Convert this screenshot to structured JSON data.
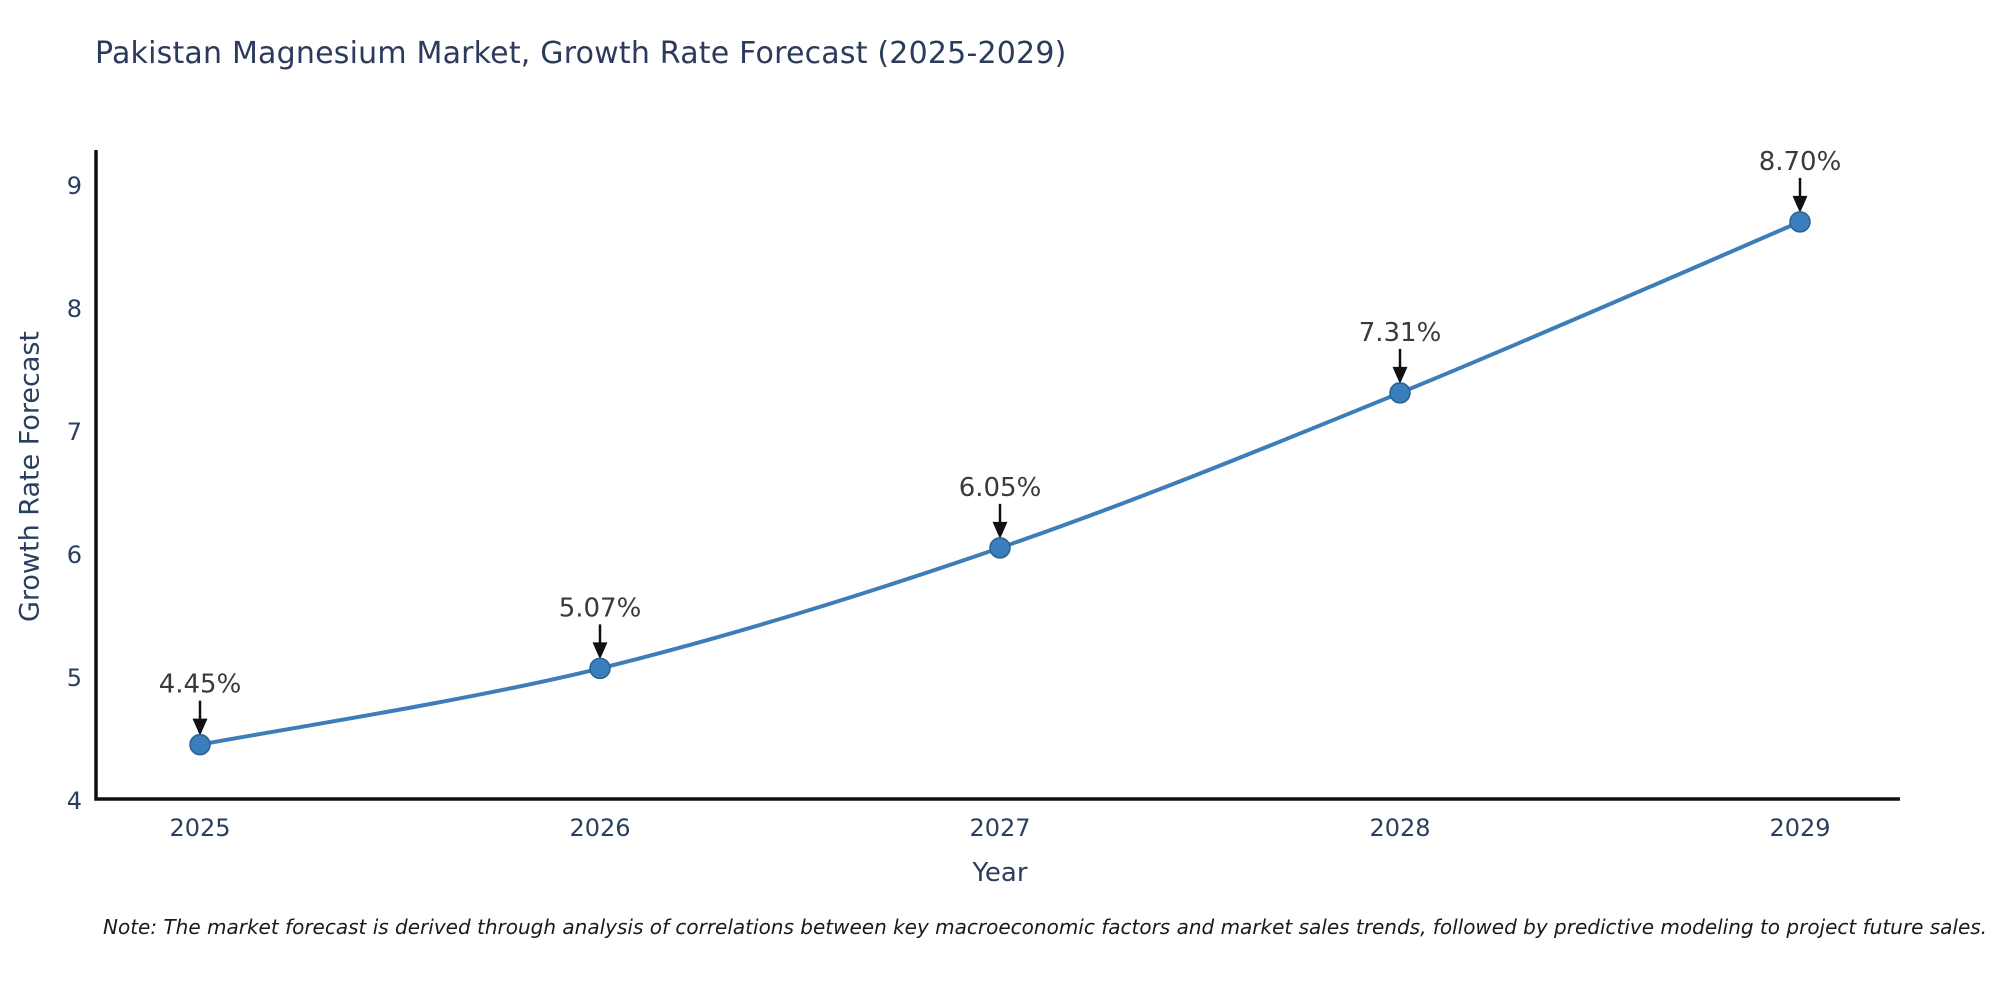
{
  "chart_data": {
    "type": "line",
    "title": "Pakistan Magnesium Market, Growth Rate Forecast (2025-2029)",
    "xlabel": "Year",
    "ylabel": "Growth Rate Forecast",
    "categories": [
      "2025",
      "2026",
      "2027",
      "2028",
      "2029"
    ],
    "values": [
      4.45,
      5.07,
      6.05,
      7.31,
      8.7
    ],
    "point_labels": [
      "4.45%",
      "5.07%",
      "6.05%",
      "7.31%",
      "8.70%"
    ],
    "ylim": [
      4,
      9
    ],
    "yticks": [
      9,
      8,
      7,
      6,
      5,
      4
    ],
    "grid": false,
    "legend_position": "none",
    "line_shape": "spline",
    "marker": "circle",
    "annotation_arrows": true,
    "note": "Note: The market forecast is derived through analysis of correlations between key macroeconomic factors and market sales trends, followed by predictive modeling to project future sales.",
    "colors": {
      "line": "#3d7eb8",
      "marker": "#3a7ebd",
      "marker_edge": "#2a618f",
      "axis": "#111111",
      "arrow": "#111111",
      "tick_label": "#2a3f5f",
      "axis_title": "#2a3f5f",
      "chart_title": "#2c3a5c",
      "annotation_text": "#3a3a3a",
      "note_text": "#1a1a1a",
      "background": "#ffffff"
    }
  }
}
